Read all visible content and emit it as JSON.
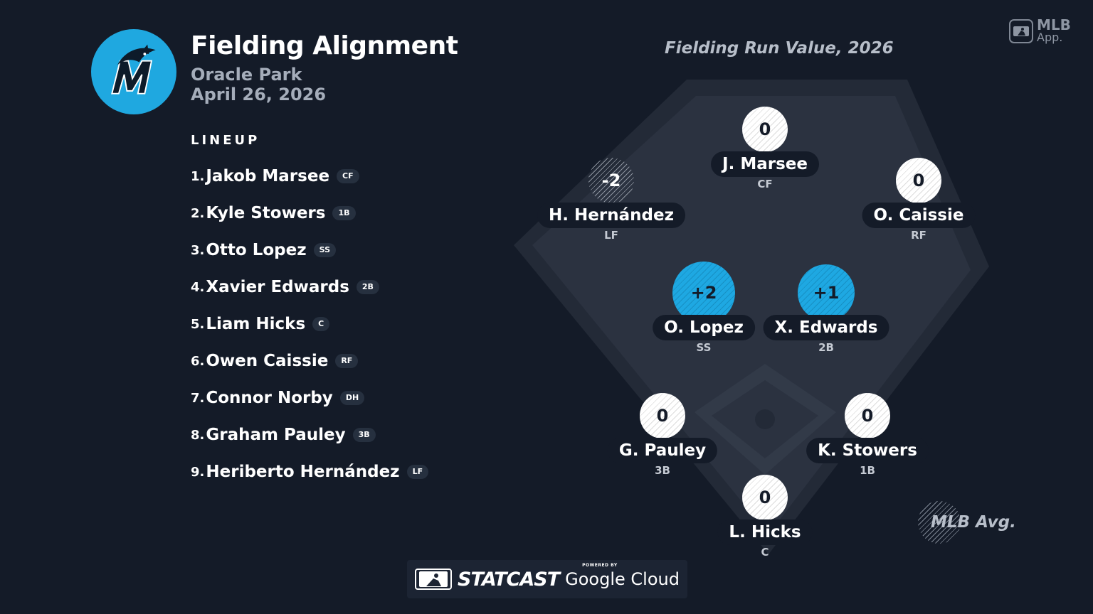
{
  "header": {
    "title": "Fielding Alignment",
    "venue": "Oracle Park",
    "date": "April 26, 2026",
    "team_logo_icon": "marlins-logo-icon"
  },
  "lineup": {
    "heading": "LINEUP",
    "players": [
      {
        "num": "1.",
        "name": "Jakob Marsee",
        "pos": "CF"
      },
      {
        "num": "2.",
        "name": "Kyle Stowers",
        "pos": "1B"
      },
      {
        "num": "3.",
        "name": "Otto Lopez",
        "pos": "SS"
      },
      {
        "num": "4.",
        "name": "Xavier Edwards",
        "pos": "2B"
      },
      {
        "num": "5.",
        "name": "Liam Hicks",
        "pos": "C"
      },
      {
        "num": "6.",
        "name": "Owen Caissie",
        "pos": "RF"
      },
      {
        "num": "7.",
        "name": "Connor Norby",
        "pos": "DH"
      },
      {
        "num": "8.",
        "name": "Graham Pauley",
        "pos": "3B"
      },
      {
        "num": "9.",
        "name": "Heriberto Hernández",
        "pos": "LF"
      }
    ]
  },
  "chart": {
    "title": "Fielding Run Value, 2026",
    "legend": "MLB Avg.",
    "fielders": {
      "cf": {
        "value": "0",
        "name": "J. Marsee",
        "pos": "CF"
      },
      "lf": {
        "value": "-2",
        "name": "H. Hernández",
        "pos": "LF"
      },
      "rf": {
        "value": "0",
        "name": "O. Caissie",
        "pos": "RF"
      },
      "ss": {
        "value": "+2",
        "name": "O. Lopez",
        "pos": "SS"
      },
      "b2": {
        "value": "+1",
        "name": "X. Edwards",
        "pos": "2B"
      },
      "b3": {
        "value": "0",
        "name": "G. Pauley",
        "pos": "3B"
      },
      "b1": {
        "value": "0",
        "name": "K. Stowers",
        "pos": "1B"
      },
      "c": {
        "value": "0",
        "name": "L. Hicks",
        "pos": "C"
      }
    }
  },
  "branding": {
    "app_line1": "MLB",
    "app_line2": "App.",
    "statcast": "STATCAST",
    "powered_by": "POWERED BY",
    "google_cloud": "Google Cloud"
  },
  "colors": {
    "background": "#141b28",
    "accent_blue": "#1ea8e2",
    "field": "#2a313f"
  }
}
